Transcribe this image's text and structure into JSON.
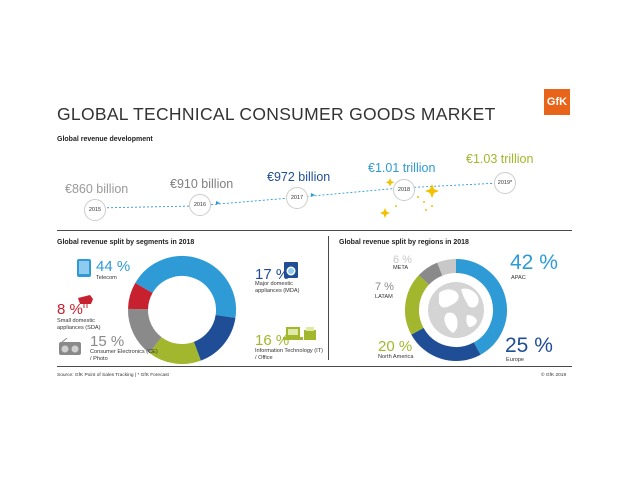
{
  "header": {
    "title": "GLOBAL TECHNICAL CONSUMER GOODS MARKET",
    "logo_text": "GfK"
  },
  "timeline": {
    "heading": "Global revenue development",
    "items": [
      {
        "value": "€860 billion",
        "year": "2015",
        "color": "#9a9a9a"
      },
      {
        "value": "€910 billion",
        "year": "2016",
        "color": "#7f7f7f"
      },
      {
        "value": "€972 billion",
        "year": "2017",
        "color": "#1f4e96"
      },
      {
        "value": "€1.01 trillion",
        "year": "2018",
        "color": "#2e9bd6"
      },
      {
        "value": "€1.03 trillion",
        "year": "2019*",
        "color": "#a2b72d"
      }
    ]
  },
  "segments": {
    "heading": "Global revenue split by segments in 2018",
    "items": [
      {
        "pct": "44 %",
        "label": "Telecom",
        "color": "#2e9bd6",
        "icon": "phone-icon"
      },
      {
        "pct": "17 %",
        "label": "Major domestic appliances (MDA)",
        "color": "#1f4e96",
        "icon": "washing-machine-icon"
      },
      {
        "pct": "16 %",
        "label": "Information Technology (IT) / Office",
        "color": "#a2b72d",
        "icon": "laptop-printer-icon"
      },
      {
        "pct": "15 %",
        "label": "Consumer Electronics (CE) / Photo",
        "color": "#8a8a8a",
        "icon": "radio-icon"
      },
      {
        "pct": "8 %",
        "label": "Small domestic appliances (SDA)",
        "color": "#c7202f",
        "icon": "mixer-icon"
      }
    ]
  },
  "regions": {
    "heading": "Global revenue split by regions in 2018",
    "items": [
      {
        "pct": "42 %",
        "label": "APAC",
        "color": "#2e9bd6"
      },
      {
        "pct": "25 %",
        "label": "Europe",
        "color": "#1f4e96"
      },
      {
        "pct": "20 %",
        "label": "North America",
        "color": "#a2b72d"
      },
      {
        "pct": "7 %",
        "label": "LATAM",
        "color": "#8a8a8a"
      },
      {
        "pct": "6 %",
        "label": "META",
        "color": "#c8c8c8"
      }
    ]
  },
  "chart_data": [
    {
      "type": "line",
      "title": "Global revenue development",
      "categories": [
        "2015",
        "2016",
        "2017",
        "2018",
        "2019*"
      ],
      "series": [
        {
          "values": [
            860,
            910,
            972,
            1010,
            1030
          ]
        }
      ]
    },
    {
      "type": "pie",
      "title": "Global revenue split by segments in 2018",
      "categories": [
        "Telecom",
        "Major domestic appliances (MDA)",
        "Information Technology (IT) / Office",
        "Consumer Electronics (CE) / Photo",
        "Small domestic appliances (SDA)"
      ],
      "values": [
        44,
        17,
        16,
        15,
        8
      ]
    },
    {
      "type": "pie",
      "title": "Global revenue split by regions in 2018",
      "categories": [
        "APAC",
        "Europe",
        "North America",
        "LATAM",
        "META"
      ],
      "values": [
        42,
        25,
        20,
        7,
        6
      ]
    }
  ],
  "footer": {
    "source": "Source: GfK Point of Sales Tracking | * GfK Forecast",
    "copyright": "© GfK 2019"
  }
}
